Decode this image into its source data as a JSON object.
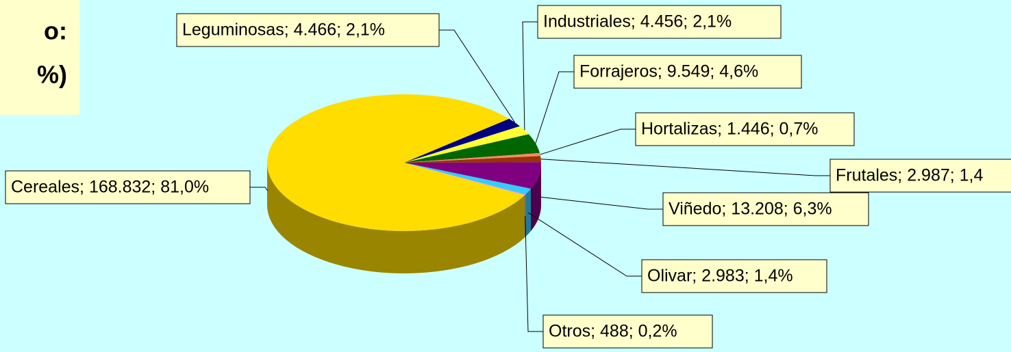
{
  "chart_data": {
    "type": "pie",
    "title_lines": [
      "o:",
      "%)"
    ],
    "categories": [
      "Cereales",
      "Leguminosas",
      "Industriales",
      "Forrajeros",
      "Hortalizas",
      "Frutales",
      "Viñedo",
      "Olivar",
      "Otros"
    ],
    "values": [
      168832,
      4466,
      4456,
      9549,
      1446,
      2987,
      13208,
      2983,
      488
    ],
    "value_labels": [
      "Cereales; 168.832; 81,0%",
      "Leguminosas; 4.466; 2,1%",
      "Industriales; 4.456; 2,1%",
      "Forrajeros; 9.549; 4,6%",
      "Hortalizas; 1.446; 0,7%",
      "Frutales; 2.987; 1,4",
      "Viñedo; 13.208; 6,3%",
      "Olivar; 2.983; 1,4%",
      "Otros; 488; 0,2%"
    ],
    "colors": [
      "#ffdd00",
      "#000080",
      "#ffff33",
      "#006600",
      "#ff8866",
      "#993300",
      "#800080",
      "#33ccff",
      "#cc99ff"
    ]
  }
}
